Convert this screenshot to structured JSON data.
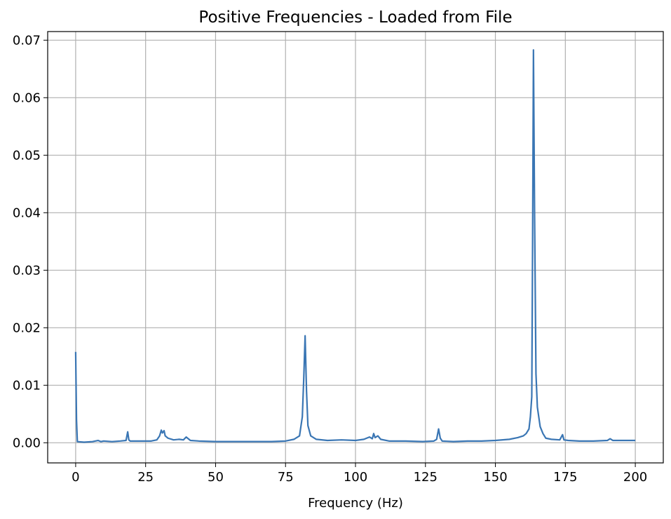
{
  "chart_data": {
    "type": "line",
    "title": "Positive Frequencies - Loaded from File",
    "xlabel": "Frequency (Hz)",
    "ylabel": "",
    "xlim": [
      -10,
      210
    ],
    "ylim": [
      -0.0035,
      0.0715
    ],
    "grid": true,
    "legend": "none",
    "line_color": "#3a76b4",
    "x_ticks": [
      0,
      25,
      50,
      75,
      100,
      125,
      150,
      175,
      200
    ],
    "x_tick_labels": [
      "0",
      "25",
      "50",
      "75",
      "100",
      "125",
      "150",
      "175",
      "200"
    ],
    "y_ticks": [
      0.0,
      0.01,
      0.02,
      0.03,
      0.04,
      0.05,
      0.06,
      0.07
    ],
    "y_tick_labels": [
      "0.00",
      "0.01",
      "0.02",
      "0.03",
      "0.04",
      "0.05",
      "0.06",
      "0.07"
    ],
    "series": [
      {
        "x": [
          0,
          0.3,
          0.6,
          3,
          6,
          8,
          9,
          10,
          13,
          16,
          18,
          18.6,
          19,
          19.5,
          21,
          24,
          27,
          29,
          30,
          30.6,
          31,
          31.6,
          32,
          33,
          35,
          37,
          38.5,
          39.5,
          41,
          44,
          50,
          55,
          60,
          65,
          70,
          75,
          78,
          80,
          81,
          81.5,
          82,
          82.5,
          83,
          84,
          86,
          90,
          95,
          100,
          103,
          105,
          106,
          106.5,
          107,
          108,
          109,
          112,
          118,
          124,
          128,
          129,
          129.7,
          130.3,
          131,
          135,
          140,
          145,
          150,
          155,
          158,
          160,
          161,
          162,
          162.5,
          163,
          163.3,
          163.6,
          164,
          164.5,
          165,
          165.5,
          166,
          167,
          168,
          170,
          173,
          174,
          174.5,
          176,
          180,
          185,
          190,
          191,
          192,
          195,
          200
        ],
        "y": [
          0.0158,
          0.004,
          0.0002,
          0.0001,
          0.0002,
          0.0004,
          0.0002,
          0.0003,
          0.0002,
          0.0003,
          0.0004,
          0.0019,
          0.0005,
          0.0003,
          0.0003,
          0.0003,
          0.0003,
          0.0005,
          0.0012,
          0.0022,
          0.0017,
          0.0021,
          0.0012,
          0.0008,
          0.0005,
          0.0006,
          0.0005,
          0.001,
          0.0004,
          0.0003,
          0.0002,
          0.0002,
          0.0002,
          0.0002,
          0.0002,
          0.0003,
          0.0006,
          0.0012,
          0.0045,
          0.011,
          0.0186,
          0.009,
          0.003,
          0.0012,
          0.0006,
          0.0004,
          0.0005,
          0.0004,
          0.0006,
          0.001,
          0.0007,
          0.0016,
          0.0009,
          0.0012,
          0.0006,
          0.0003,
          0.0003,
          0.0002,
          0.0003,
          0.0006,
          0.0024,
          0.0008,
          0.0003,
          0.0002,
          0.0003,
          0.0003,
          0.0004,
          0.0006,
          0.0009,
          0.0012,
          0.0016,
          0.0024,
          0.0045,
          0.008,
          0.035,
          0.0683,
          0.04,
          0.012,
          0.0062,
          0.0045,
          0.0028,
          0.0016,
          0.0008,
          0.0006,
          0.0005,
          0.0014,
          0.0005,
          0.0004,
          0.0003,
          0.0003,
          0.0004,
          0.0007,
          0.0004,
          0.0004,
          0.0004
        ]
      }
    ]
  }
}
